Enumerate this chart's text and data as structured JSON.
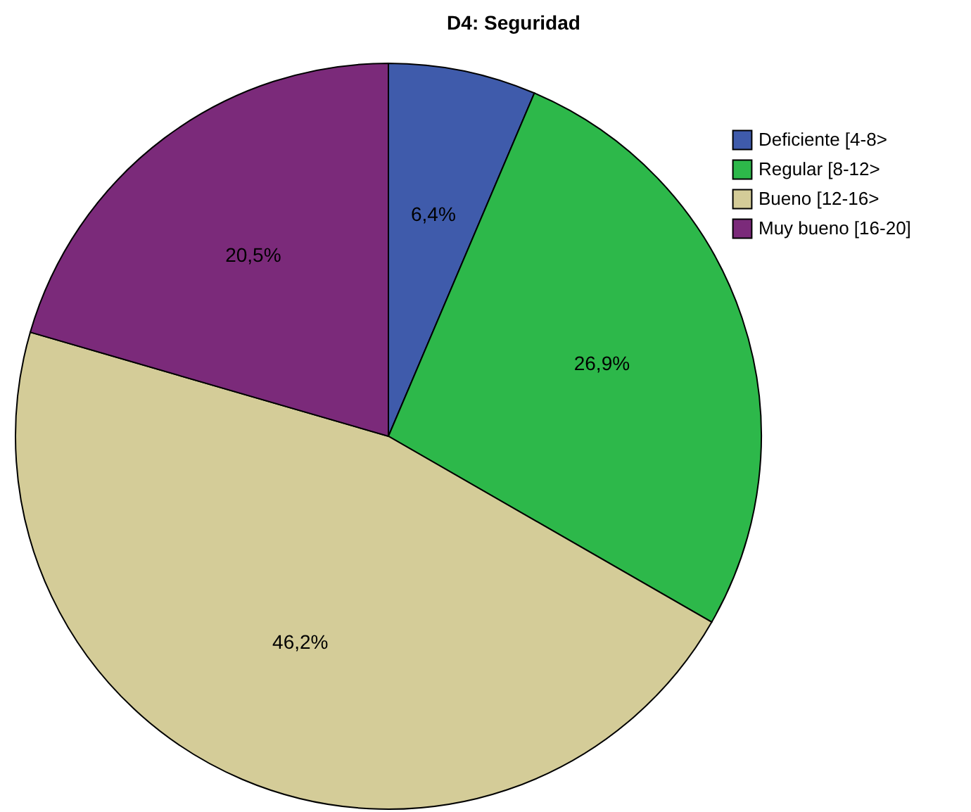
{
  "chart_data": {
    "type": "pie",
    "title": "D4: Seguridad",
    "categories": [
      "Deficiente [4-8>",
      "Regular [8-12>",
      "Bueno [12-16>",
      "Muy bueno [16-20]"
    ],
    "values": [
      6.4,
      26.9,
      46.2,
      20.5
    ],
    "colors": [
      "#3f5bab",
      "#2db84a",
      "#d4cc98",
      "#7b2a7a"
    ],
    "value_labels": [
      "6,4%",
      "26,9%",
      "46,2%",
      "20,5%"
    ],
    "legend": "top right"
  }
}
